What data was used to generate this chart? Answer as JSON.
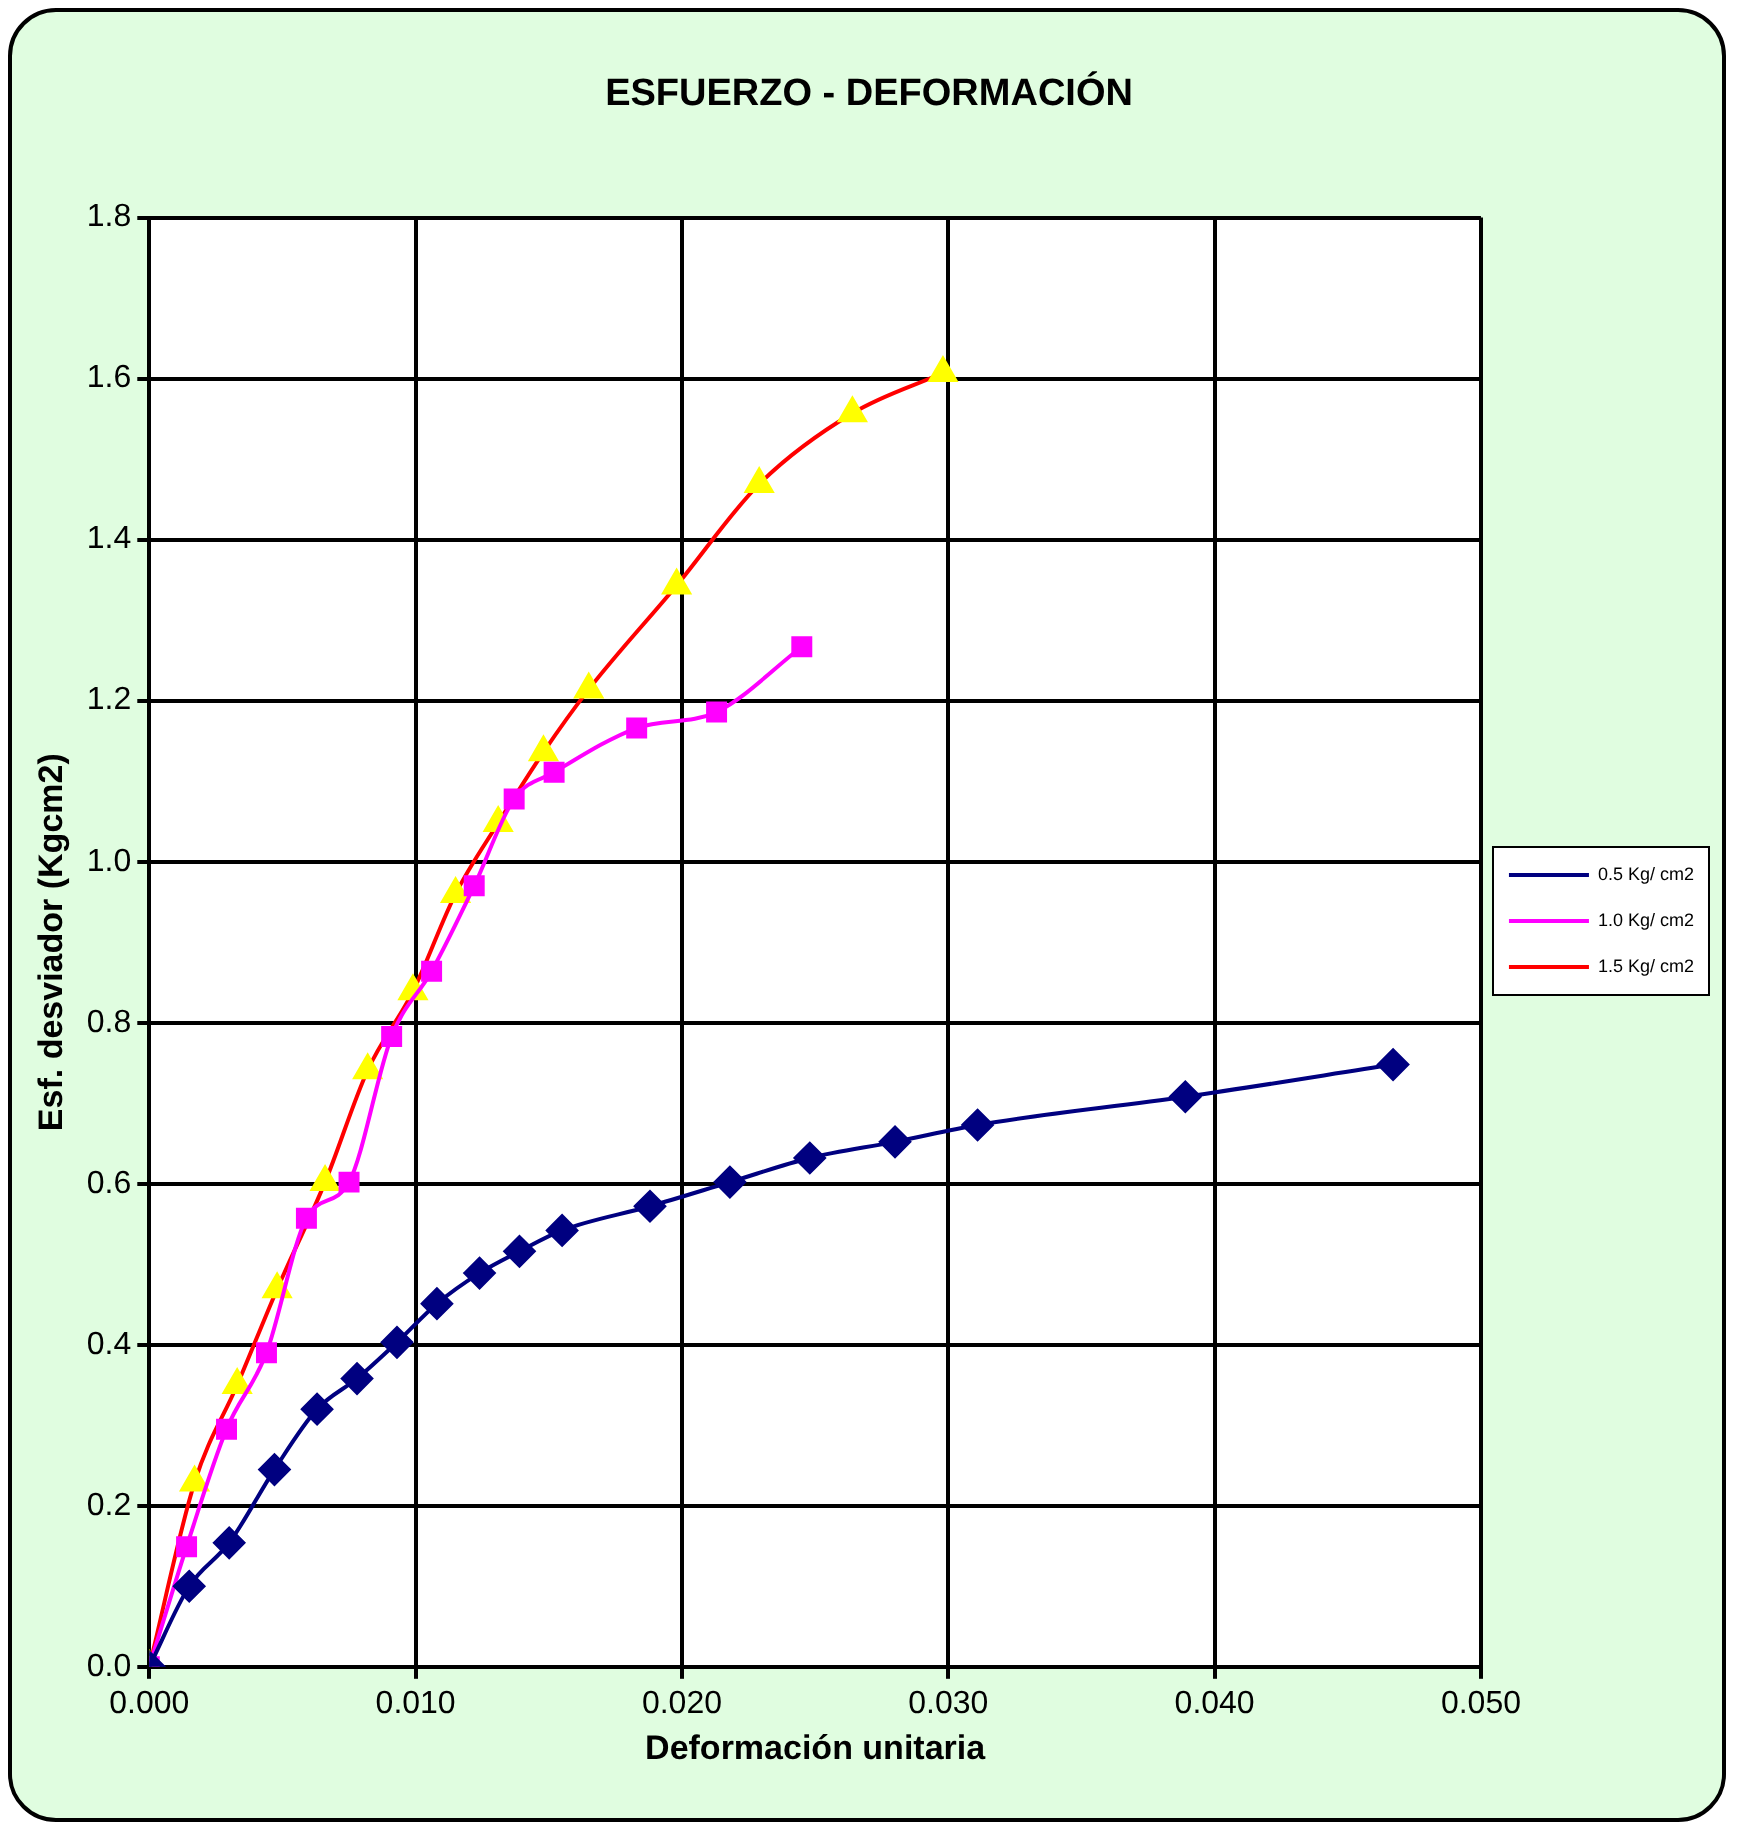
{
  "chart_data": {
    "type": "line",
    "title": "ESFUERZO - DEFORMACIÓN",
    "xlabel": "Deformación unitaria",
    "ylabel": "Esf. desviador (Kgcm2)",
    "xlim": [
      0,
      0.05
    ],
    "xticks": [
      {
        "value": 0,
        "label": "0.000"
      },
      {
        "value": 0.01,
        "label": "0.010"
      },
      {
        "value": 0.02,
        "label": "0.020"
      },
      {
        "value": 0.03,
        "label": "0.030"
      },
      {
        "value": 0.04,
        "label": "0.040"
      },
      {
        "value": 0.05,
        "label": "0.050"
      }
    ],
    "ylim": [
      0,
      1.8
    ],
    "yticks": [
      {
        "value": 0,
        "label": "0.0"
      },
      {
        "value": 0.2,
        "label": "0.2"
      },
      {
        "value": 0.4,
        "label": "0.4"
      },
      {
        "value": 0.6,
        "label": "0.6"
      },
      {
        "value": 0.8,
        "label": "0.8"
      },
      {
        "value": 1.0,
        "label": "1.0"
      },
      {
        "value": 1.2,
        "label": "1.2"
      },
      {
        "value": 1.4,
        "label": "1.4"
      },
      {
        "value": 1.6,
        "label": "1.6"
      },
      {
        "value": 1.8,
        "label": "1.8"
      }
    ],
    "grid": true,
    "legend": "right",
    "line_style": "solid",
    "series": [
      {
        "name": "0.5 Kg/ cm2",
        "color": "#000080",
        "marker": "diamond",
        "x": [
          0,
          0.0015,
          0.003,
          0.0047,
          0.0063,
          0.0078,
          0.0093,
          0.0108,
          0.0124,
          0.0139,
          0.0155,
          0.0188,
          0.0218,
          0.0248,
          0.028,
          0.0311,
          0.0389,
          0.0467
        ],
        "values": [
          0,
          0.1,
          0.154,
          0.245,
          0.32,
          0.358,
          0.403,
          0.451,
          0.489,
          0.516,
          0.542,
          0.572,
          0.602,
          0.632,
          0.652,
          0.673,
          0.708,
          0.748
        ]
      },
      {
        "name": "1.0 Kg/ cm2",
        "color": "#ff00ff",
        "marker": "square",
        "x": [
          0,
          0.0014,
          0.0029,
          0.0044,
          0.0059,
          0.0075,
          0.0091,
          0.0106,
          0.0122,
          0.0137,
          0.0152,
          0.0183,
          0.0213,
          0.0245
        ],
        "values": [
          0,
          0.149,
          0.295,
          0.39,
          0.557,
          0.602,
          0.783,
          0.864,
          0.97,
          1.078,
          1.111,
          1.166,
          1.186,
          1.267
        ]
      },
      {
        "name": "1.5 Kg/ cm2",
        "color": "#ff0000",
        "colors": [
          "#ffff00",
          "#ffff00",
          "#ffff00",
          "#ffff00",
          "#ffff00",
          "#ffff00",
          "#ffff00",
          "#ffff00",
          "#ffff00",
          "#ffff00",
          "#ffff00",
          "#ffff00",
          "#ffff00",
          "#ffff00",
          "#ffff00"
        ],
        "marker": "triangle",
        "x": [
          0,
          0.0017,
          0.0033,
          0.0048,
          0.0066,
          0.0082,
          0.0099,
          0.0115,
          0.0131,
          0.0148,
          0.0165,
          0.0198,
          0.0229,
          0.0264,
          0.0298
        ],
        "values": [
          0,
          0.229,
          0.35,
          0.469,
          0.602,
          0.741,
          0.839,
          0.96,
          1.048,
          1.136,
          1.214,
          1.343,
          1.469,
          1.557,
          1.607
        ]
      }
    ]
  }
}
